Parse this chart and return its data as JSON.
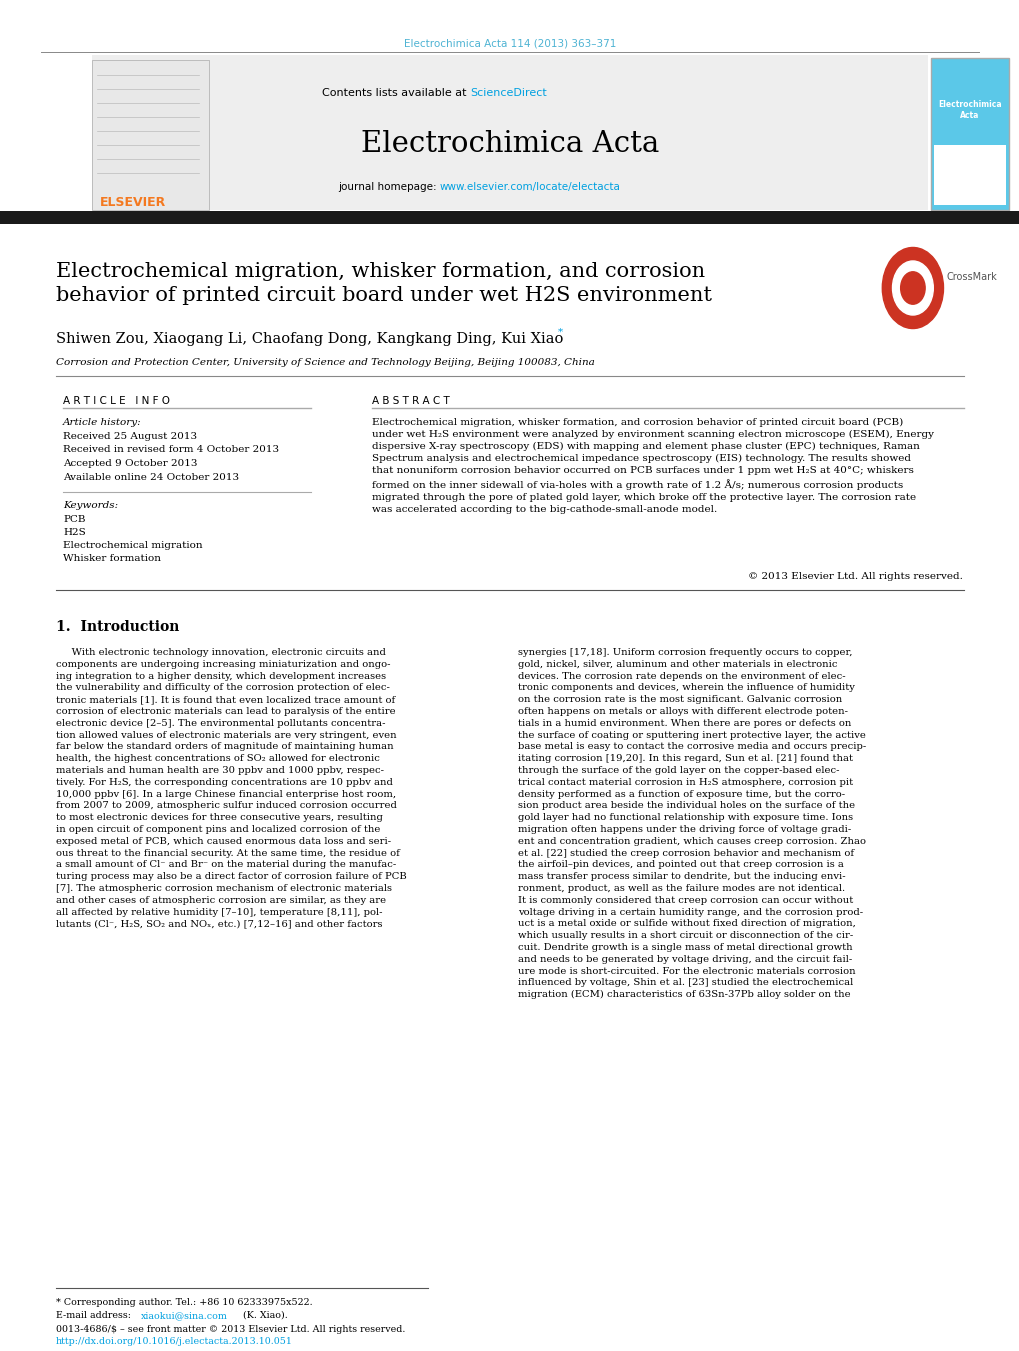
{
  "page_width": 10.2,
  "page_height": 13.51,
  "bg_color": "#ffffff",
  "header_citation": "Electrochimica Acta 114 (2013) 363–371",
  "header_citation_color": "#4eb3d3",
  "contents_text": "Contents lists available at ",
  "sciencedirect_text": "ScienceDirect",
  "sciencedirect_color": "#00a0e0",
  "journal_name": "Electrochimica Acta",
  "journal_homepage_text": "journal homepage: ",
  "journal_url": "www.elsevier.com/locate/electacta",
  "journal_url_color": "#00a0e0",
  "elsevier_color": "#f47920",
  "article_title": "Electrochemical migration, whisker formation, and corrosion\nbehavior of printed circuit board under wet H2S environment",
  "authors": "Shiwen Zou, Xiaogang Li, Chaofang Dong, Kangkang Ding, Kui Xiao",
  "affiliation": "Corrosion and Protection Center, University of Science and Technology Beijing, Beijing 100083, China",
  "section_article_info": "A R T I C L E   I N F O",
  "section_abstract": "A B S T R A C T",
  "article_history_label": "Article history:",
  "dates": [
    "Received 25 August 2013",
    "Received in revised form 4 October 2013",
    "Accepted 9 October 2013",
    "Available online 24 October 2013"
  ],
  "keywords_label": "Keywords:",
  "keywords": [
    "PCB",
    "H2S",
    "Electrochemical migration",
    "Whisker formation"
  ],
  "abstract_text": "Electrochemical migration, whisker formation, and corrosion behavior of printed circuit board (PCB)\nunder wet H₂S environment were analyzed by environment scanning electron microscope (ESEM), Energy\ndispersive X-ray spectroscopy (EDS) with mapping and element phase cluster (EPC) techniques, Raman\nSpectrum analysis and electrochemical impedance spectroscopy (EIS) technology. The results showed\nthat nonuniform corrosion behavior occurred on PCB surfaces under 1 ppm wet H₂S at 40°C; whiskers\nformed on the inner sidewall of via-holes with a growth rate of 1.2 Å/s; numerous corrosion products\nmigrated through the pore of plated gold layer, which broke off the protective layer. The corrosion rate\nwas accelerated according to the big-cathode-small-anode model.",
  "copyright_text": "© 2013 Elsevier Ltd. All rights reserved.",
  "intro_heading": "1.  Introduction",
  "intro_col1": "     With electronic technology innovation, electronic circuits and\ncomponents are undergoing increasing miniaturization and ongo-\ning integration to a higher density, which development increases\nthe vulnerability and difficulty of the corrosion protection of elec-\ntronic materials [1]. It is found that even localized trace amount of\ncorrosion of electronic materials can lead to paralysis of the entire\nelectronic device [2–5]. The environmental pollutants concentra-\ntion allowed values of electronic materials are very stringent, even\nfar below the standard orders of magnitude of maintaining human\nhealth, the highest concentrations of SO₂ allowed for electronic\nmaterials and human health are 30 ppbv and 1000 ppbv, respec-\ntively. For H₂S, the corresponding concentrations are 10 ppbv and\n10,000 ppbv [6]. In a large Chinese financial enterprise host room,\nfrom 2007 to 2009, atmospheric sulfur induced corrosion occurred\nto most electronic devices for three consecutive years, resulting\nin open circuit of component pins and localized corrosion of the\nexposed metal of PCB, which caused enormous data loss and seri-\nous threat to the financial security. At the same time, the residue of\na small amount of Cl⁻ and Br⁻ on the material during the manufac-\nturing process may also be a direct factor of corrosion failure of PCB\n[7]. The atmospheric corrosion mechanism of electronic materials\nand other cases of atmospheric corrosion are similar, as they are\nall affected by relative humidity [7–10], temperature [8,11], pol-\nlutants (Cl⁻, H₂S, SO₂ and NOₓ, etc.) [7,12–16] and other factors",
  "intro_col2": "synergies [17,18]. Uniform corrosion frequently occurs to copper,\ngold, nickel, silver, aluminum and other materials in electronic\ndevices. The corrosion rate depends on the environment of elec-\ntronic components and devices, wherein the influence of humidity\non the corrosion rate is the most significant. Galvanic corrosion\noften happens on metals or alloys with different electrode poten-\ntials in a humid environment. When there are pores or defects on\nthe surface of coating or sputtering inert protective layer, the active\nbase metal is easy to contact the corrosive media and occurs precip-\nitating corrosion [19,20]. In this regard, Sun et al. [21] found that\nthrough the surface of the gold layer on the copper-based elec-\ntrical contact material corrosion in H₂S atmosphere, corrosion pit\ndensity performed as a function of exposure time, but the corro-\nsion product area beside the individual holes on the surface of the\ngold layer had no functional relationship with exposure time. Ions\nmigration often happens under the driving force of voltage gradi-\nent and concentration gradient, which causes creep corrosion. Zhao\net al. [22] studied the creep corrosion behavior and mechanism of\nthe airfoil–pin devices, and pointed out that creep corrosion is a\nmass transfer process similar to dendrite, but the inducing envi-\nronment, product, as well as the failure modes are not identical.\nIt is commonly considered that creep corrosion can occur without\nvoltage driving in a certain humidity range, and the corrosion prod-\nuct is a metal oxide or sulfide without fixed direction of migration,\nwhich usually results in a short circuit or disconnection of the cir-\ncuit. Dendrite growth is a single mass of metal directional growth\nand needs to be generated by voltage driving, and the circuit fail-\nure mode is short-circuited. For the electronic materials corrosion\ninfluenced by voltage, Shin et al. [23] studied the electrochemical\nmigration (ECM) characteristics of 63Sn-37Pb alloy solder on the",
  "footer_note": "* Corresponding author. Tel.: +86 10 62333975x522.",
  "footer_email_label": "E-mail address: ",
  "footer_email": "xiaokui@sina.com",
  "footer_email_suffix": " (K. Xiao).",
  "footer_issn": "0013-4686/$ – see front matter © 2013 Elsevier Ltd. All rights reserved.",
  "footer_doi": "http://dx.doi.org/10.1016/j.electacta.2013.10.051",
  "black_bar_color": "#1a1a1a",
  "link_color": "#00a0e0"
}
